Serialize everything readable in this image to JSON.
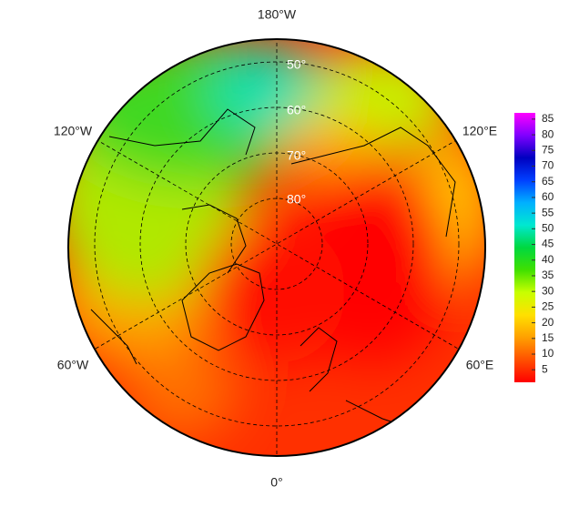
{
  "map": {
    "lon_labels": [
      "180°W",
      "120°W",
      "120°E",
      "60°W",
      "60°E",
      "0°"
    ],
    "lat_labels": [
      "50°",
      "60°",
      "70°",
      "80°"
    ],
    "colorbar": {
      "lim": [
        1,
        87
      ],
      "ticks": [
        5,
        10,
        15,
        20,
        25,
        30,
        35,
        40,
        45,
        50,
        55,
        60,
        65,
        70,
        75,
        80,
        85
      ],
      "colors": [
        "#ff0000",
        "#ff5000",
        "#ffa000",
        "#ffe000",
        "#c8ff00",
        "#40e000",
        "#00d840",
        "#00e8d0",
        "#00b0ff",
        "#0040ff",
        "#0000c0",
        "#8000ff",
        "#ff00ff"
      ]
    }
  }
}
